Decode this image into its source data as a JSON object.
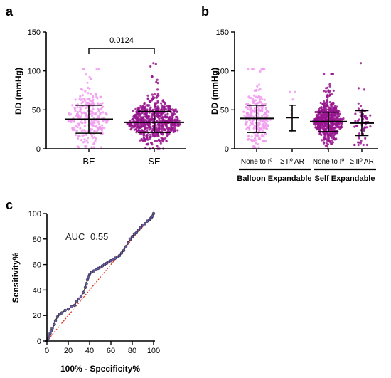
{
  "panels": {
    "a": "a",
    "b": "b",
    "c": "c"
  },
  "chart_data": [
    {
      "panel": "a",
      "type": "scatter",
      "ylabel": "DD (mmHg)",
      "ylim": [
        0,
        150
      ],
      "yticks": [
        0,
        50,
        100,
        150
      ],
      "categories": [
        "BE",
        "SE"
      ],
      "colors": [
        "#f19af0",
        "#98158e"
      ],
      "point_counts": [
        260,
        620
      ],
      "summary": [
        {
          "category": "BE",
          "mean": 38,
          "sd_low": 20,
          "sd_high": 56,
          "min": 2,
          "max": 102
        },
        {
          "category": "SE",
          "mean": 34,
          "sd_low": 21,
          "sd_high": 48,
          "min": 0,
          "max": 110
        }
      ],
      "bracket_label": "0.0124"
    },
    {
      "panel": "b",
      "type": "scatter",
      "ylabel": "DD (mmHg)",
      "ylim": [
        0,
        150
      ],
      "yticks": [
        0,
        50,
        100,
        150
      ],
      "categories": [
        "None to Iº",
        "≥ IIº AR",
        "None to Iº",
        "≥ IIº AR"
      ],
      "groups": [
        "Balloon Expandable",
        "Self Expandable"
      ],
      "colors": [
        "#f19af0",
        "#f19af0",
        "#98158e",
        "#98158e"
      ],
      "point_counts": [
        250,
        6,
        560,
        60
      ],
      "summary": [
        {
          "mean": 39,
          "sd_low": 21,
          "sd_high": 56,
          "min": 2,
          "max": 102
        },
        {
          "mean": 40,
          "sd_low": 23,
          "sd_high": 56,
          "min": 22,
          "max": 73
        },
        {
          "mean": 35,
          "sd_low": 22,
          "sd_high": 47,
          "min": 0,
          "max": 96
        },
        {
          "mean": 33,
          "sd_low": 17,
          "sd_high": 49,
          "min": 5,
          "max": 110
        }
      ]
    },
    {
      "panel": "c",
      "type": "line",
      "xlabel": "100% - Specificity%",
      "ylabel": "Sensitivity%",
      "xlim": [
        0,
        100
      ],
      "ylim": [
        0,
        100
      ],
      "xticks": [
        0,
        20,
        40,
        60,
        80,
        100
      ],
      "yticks": [
        0,
        20,
        40,
        60,
        80,
        100
      ],
      "annotation": "AUC=0.55",
      "roc": {
        "x": [
          0,
          1,
          2,
          3,
          4,
          5,
          7,
          8,
          10,
          12,
          14,
          17,
          20,
          23,
          26,
          28,
          30,
          32,
          34,
          36,
          37,
          38,
          39,
          40,
          42,
          44,
          46,
          48,
          50,
          52,
          54,
          56,
          58,
          60,
          62,
          64,
          66,
          68,
          70,
          72,
          74,
          76,
          78,
          80,
          82,
          84,
          86,
          88,
          90,
          92,
          94,
          96,
          97,
          98,
          99,
          100
        ],
        "y": [
          0,
          2,
          4,
          6,
          8,
          10,
          13,
          16,
          19,
          21,
          22,
          24,
          25,
          27,
          28,
          31,
          33,
          35,
          38,
          42,
          45,
          48,
          50,
          52,
          54,
          55,
          56,
          57,
          58,
          59,
          60,
          61,
          62,
          63,
          64,
          65,
          66,
          67,
          69,
          71,
          74,
          77,
          80,
          82,
          84,
          85,
          87,
          89,
          91,
          92,
          94,
          95,
          96,
          97,
          98,
          100
        ]
      },
      "reference_line": {
        "x": [
          0,
          100
        ],
        "y": [
          0,
          100
        ],
        "color": "#e0301e",
        "style": "dotted"
      }
    }
  ]
}
